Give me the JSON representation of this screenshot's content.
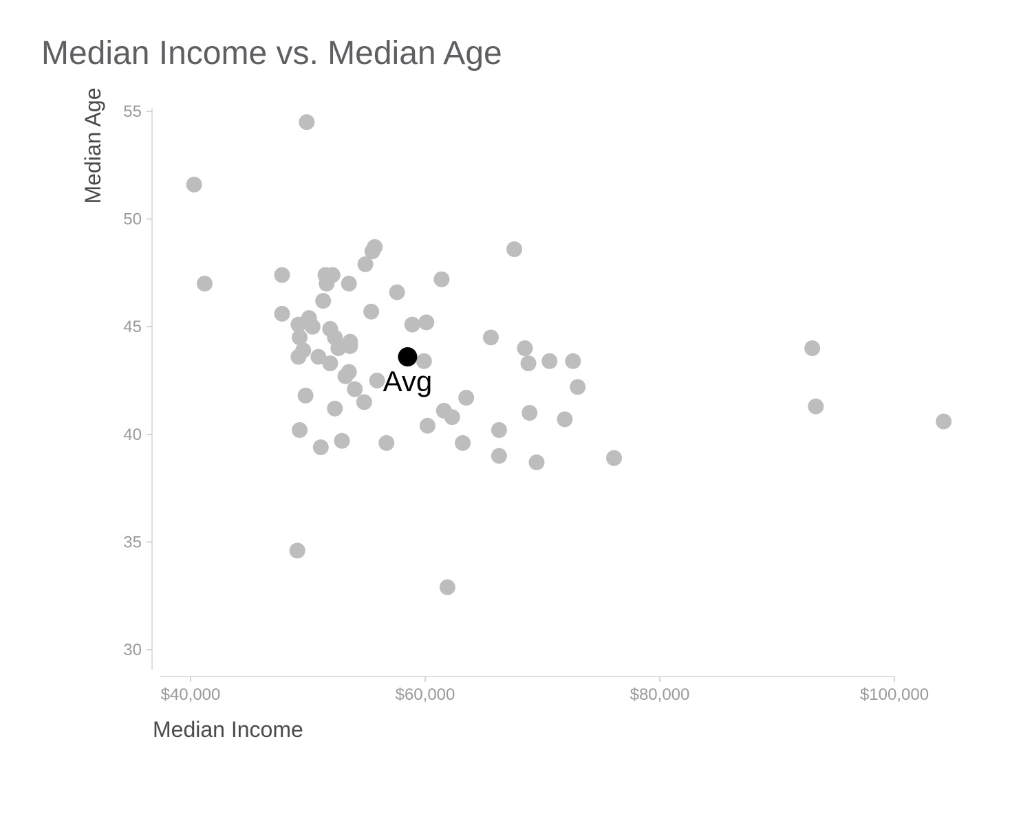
{
  "chart_data": {
    "type": "scatter",
    "title": "Median Income vs. Median Age",
    "xlabel": "Median Income",
    "ylabel": "Median Age",
    "xlim": [
      39000,
      106000
    ],
    "ylim": [
      29.5,
      55.5
    ],
    "x_ticks": [
      40000,
      60000,
      80000,
      100000
    ],
    "x_tick_labels": [
      "$40,000",
      "$60,000",
      "$80,000",
      "$100,000"
    ],
    "y_ticks": [
      30,
      35,
      40,
      45,
      50,
      55
    ],
    "y_tick_labels": [
      "30",
      "35",
      "40",
      "45",
      "50",
      "55"
    ],
    "grid": false,
    "point_color": "#bdbdbd",
    "highlight_color": "#000000",
    "series": [
      {
        "points": [
          [
            40300,
            51.6
          ],
          [
            41200,
            47.0
          ],
          [
            49900,
            54.5
          ],
          [
            47800,
            47.4
          ],
          [
            47800,
            45.6
          ],
          [
            49200,
            45.1
          ],
          [
            49300,
            44.5
          ],
          [
            49200,
            43.6
          ],
          [
            49600,
            43.9
          ],
          [
            50100,
            45.4
          ],
          [
            50400,
            45.0
          ],
          [
            49800,
            41.8
          ],
          [
            49300,
            40.2
          ],
          [
            51100,
            39.4
          ],
          [
            50900,
            43.6
          ],
          [
            51300,
            46.2
          ],
          [
            51500,
            47.4
          ],
          [
            52100,
            47.4
          ],
          [
            51600,
            47.0
          ],
          [
            51900,
            44.9
          ],
          [
            52300,
            44.5
          ],
          [
            52600,
            44.0
          ],
          [
            51900,
            43.3
          ],
          [
            53600,
            44.3
          ],
          [
            53600,
            44.1
          ],
          [
            53500,
            47.0
          ],
          [
            53200,
            42.7
          ],
          [
            53500,
            42.9
          ],
          [
            52300,
            41.2
          ],
          [
            52900,
            39.7
          ],
          [
            54000,
            42.1
          ],
          [
            54800,
            41.5
          ],
          [
            54900,
            47.9
          ],
          [
            55500,
            48.5
          ],
          [
            55700,
            48.7
          ],
          [
            55400,
            45.7
          ],
          [
            55900,
            42.5
          ],
          [
            56700,
            39.6
          ],
          [
            57600,
            46.6
          ],
          [
            58900,
            45.1
          ],
          [
            60100,
            45.2
          ],
          [
            59900,
            43.4
          ],
          [
            60200,
            40.4
          ],
          [
            61400,
            47.2
          ],
          [
            61600,
            41.1
          ],
          [
            62300,
            40.8
          ],
          [
            61900,
            32.9
          ],
          [
            63200,
            39.6
          ],
          [
            63500,
            41.7
          ],
          [
            49100,
            34.6
          ],
          [
            65600,
            44.5
          ],
          [
            66300,
            40.2
          ],
          [
            66300,
            39.0
          ],
          [
            67600,
            48.6
          ],
          [
            68500,
            44.0
          ],
          [
            68800,
            43.3
          ],
          [
            68900,
            41.0
          ],
          [
            69500,
            38.7
          ],
          [
            70600,
            43.4
          ],
          [
            71900,
            40.7
          ],
          [
            72600,
            43.4
          ],
          [
            73000,
            42.2
          ],
          [
            76100,
            38.9
          ],
          [
            93000,
            44.0
          ],
          [
            93300,
            41.3
          ],
          [
            104200,
            40.6
          ]
        ]
      }
    ],
    "highlight": {
      "label": "Avg",
      "x": 58500,
      "y": 43.6
    }
  }
}
